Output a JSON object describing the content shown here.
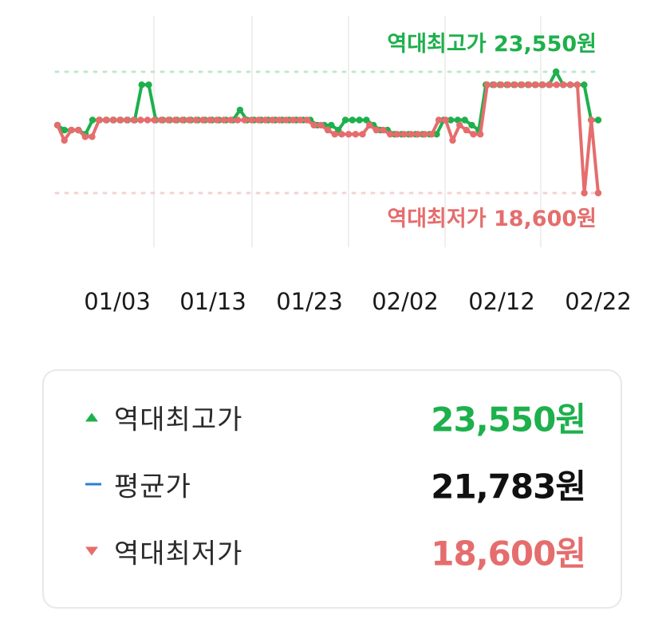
{
  "chart_data": {
    "type": "line",
    "x_ticks": [
      "01/03",
      "01/13",
      "01/23",
      "02/02",
      "02/12",
      "02/22"
    ],
    "ylim": [
      18600,
      23550
    ],
    "grid": "vertical",
    "annotations": {
      "max_label": "역대최고가 23,550원",
      "min_label": "역대최저가 18,600원"
    },
    "series": [
      {
        "color": "#1db04c",
        "values": [
          21370,
          21170,
          21170,
          21170,
          21000,
          21580,
          21580,
          21580,
          21580,
          21580,
          21580,
          21580,
          23020,
          23020,
          21580,
          21580,
          21580,
          21580,
          21580,
          21580,
          21580,
          21580,
          21580,
          21580,
          21580,
          21580,
          21990,
          21580,
          21580,
          21580,
          21580,
          21580,
          21580,
          21580,
          21580,
          21580,
          21580,
          21370,
          21370,
          21370,
          21170,
          21580,
          21580,
          21580,
          21580,
          21370,
          21170,
          21170,
          21000,
          21000,
          21000,
          21000,
          21000,
          21000,
          21000,
          21580,
          21580,
          21580,
          21580,
          21370,
          21170,
          23020,
          23020,
          23020,
          23020,
          23020,
          23020,
          23020,
          23020,
          23020,
          23020,
          23550,
          23020,
          23020,
          23020,
          23020,
          21580,
          21580
        ]
      },
      {
        "color": "#e56d6d",
        "values": [
          21370,
          20750,
          21170,
          21170,
          20900,
          20900,
          21580,
          21580,
          21580,
          21580,
          21580,
          21580,
          21580,
          21580,
          21580,
          21580,
          21580,
          21580,
          21580,
          21580,
          21580,
          21580,
          21580,
          21580,
          21580,
          21580,
          21580,
          21580,
          21580,
          21580,
          21580,
          21580,
          21580,
          21580,
          21580,
          21580,
          21580,
          21370,
          21370,
          21170,
          21000,
          21000,
          21000,
          21000,
          21000,
          21370,
          21170,
          21170,
          21000,
          21000,
          21000,
          21000,
          21000,
          21000,
          21000,
          21580,
          21580,
          20750,
          21370,
          21170,
          21000,
          21000,
          23020,
          23020,
          23020,
          23020,
          23020,
          23020,
          23020,
          23020,
          23020,
          23020,
          23020,
          23020,
          23020,
          23020,
          18600,
          21580,
          18600
        ]
      }
    ]
  },
  "summary": {
    "high": {
      "icon": "up-triangle-icon",
      "label": "역대최고가",
      "value": "23,550원",
      "color": "#1db04c"
    },
    "avg": {
      "icon": "dash-icon",
      "label": "평균가",
      "value": "21,783원",
      "color": "#111111"
    },
    "low": {
      "icon": "down-triangle-icon",
      "label": "역대최저가",
      "value": "18,600원",
      "color": "#e56d6d"
    }
  }
}
